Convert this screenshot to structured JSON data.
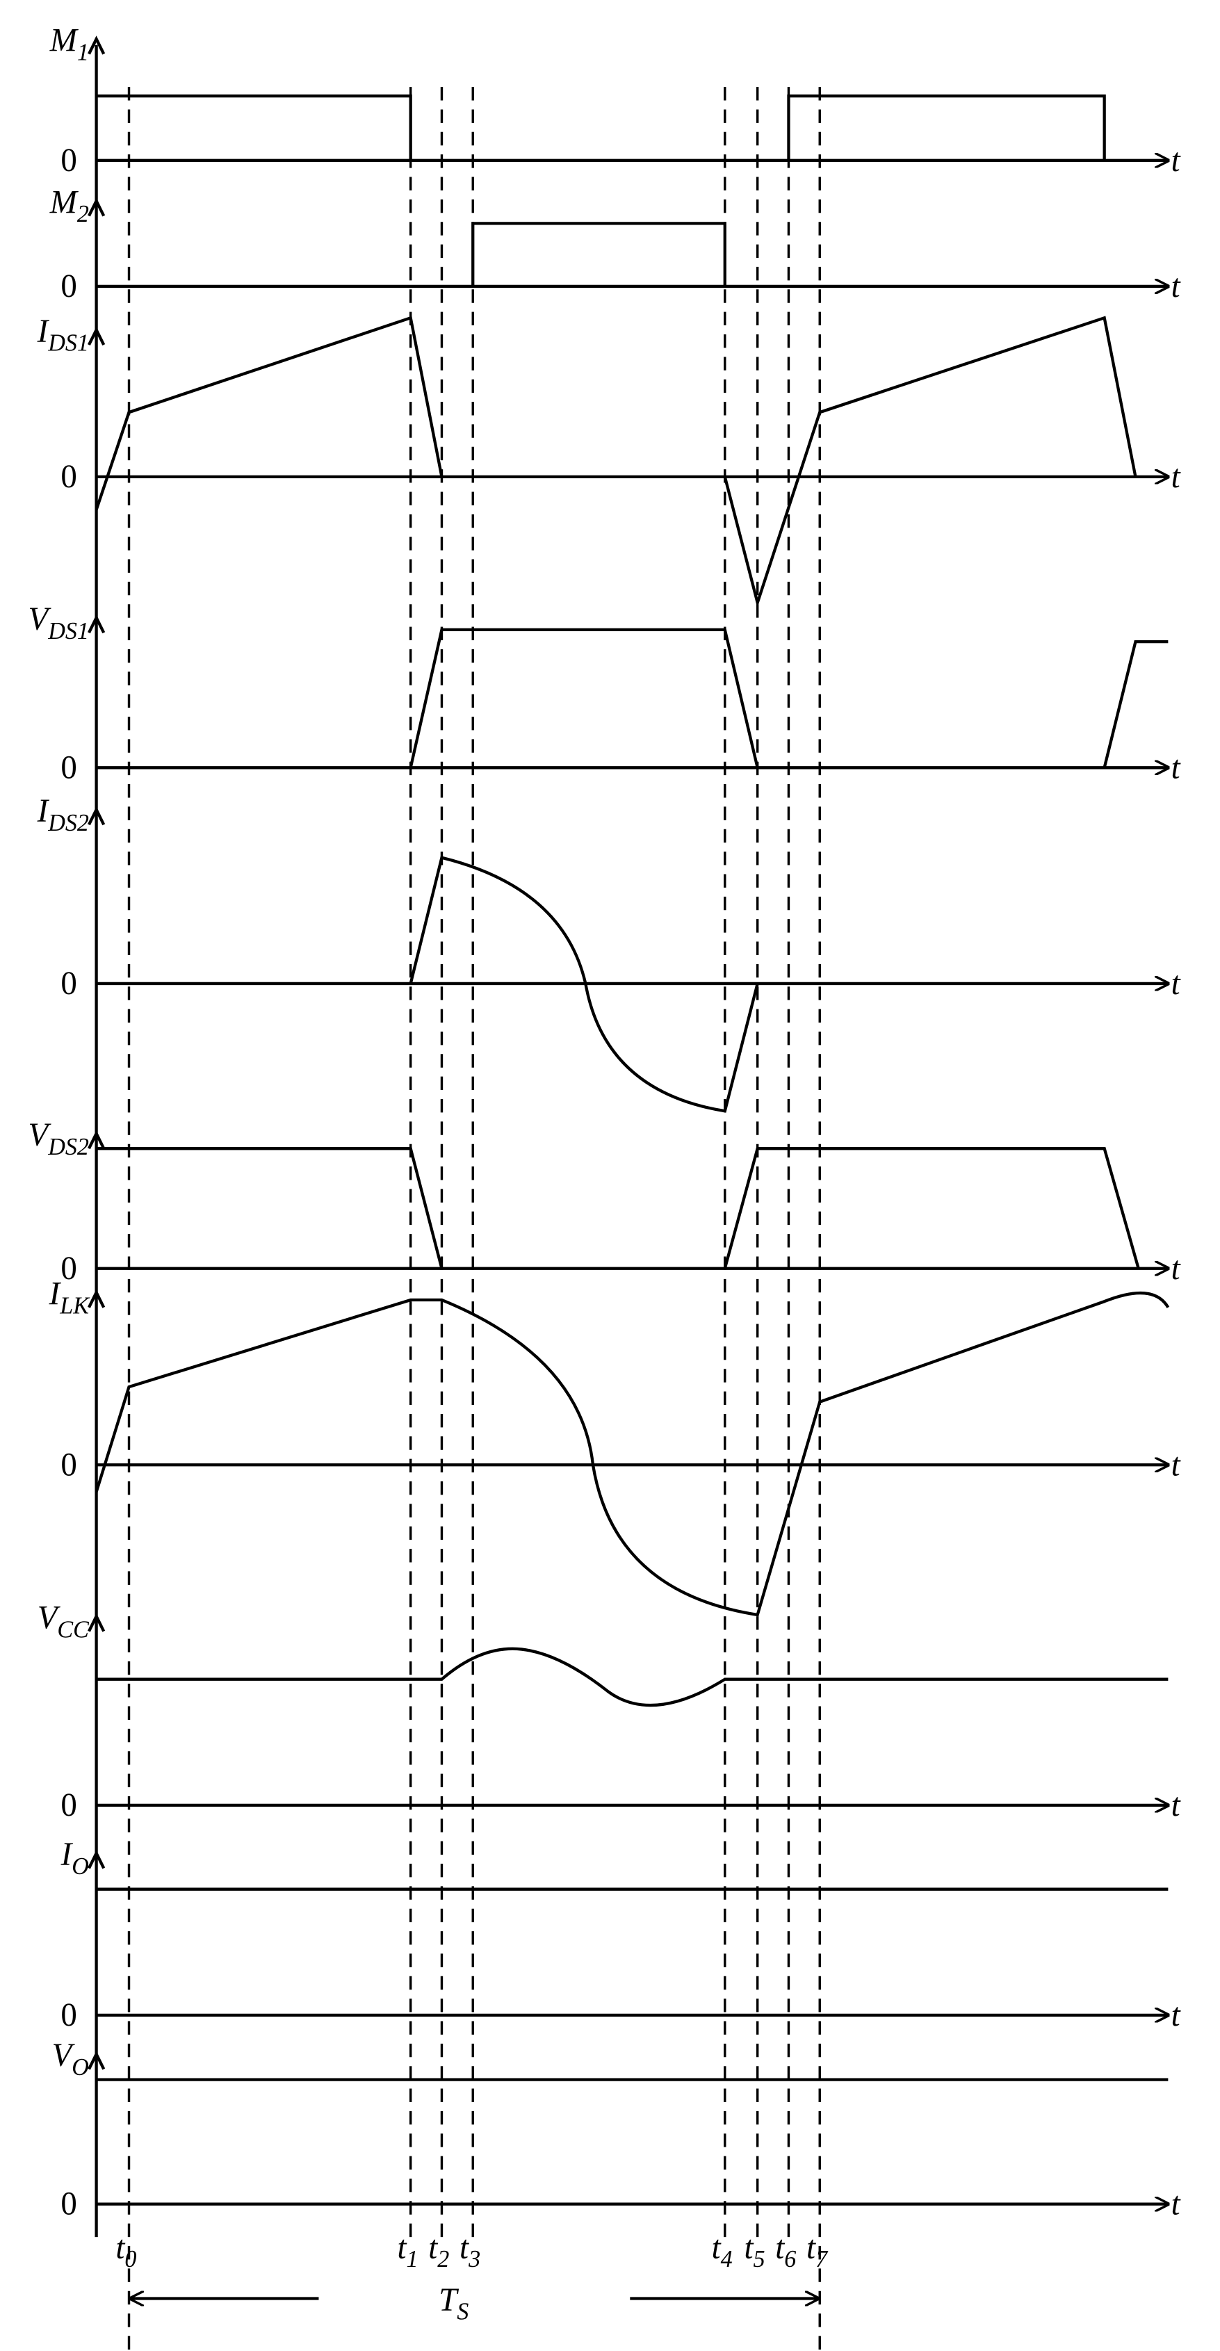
{
  "signals": [
    {
      "name": "M",
      "sub": "1",
      "zero": "0",
      "axis": "t"
    },
    {
      "name": "M",
      "sub": "2",
      "zero": "0",
      "axis": "t"
    },
    {
      "name": "I",
      "sub": "DS1",
      "zero": "0",
      "axis": "t"
    },
    {
      "name": "V",
      "sub": "DS1",
      "zero": "0",
      "axis": "t"
    },
    {
      "name": "I",
      "sub": "DS2",
      "zero": "0",
      "axis": "t"
    },
    {
      "name": "V",
      "sub": "DS2",
      "zero": "0",
      "axis": "t"
    },
    {
      "name": "I",
      "sub": "LK",
      "zero": "0",
      "axis": "t"
    },
    {
      "name": "V",
      "sub": "CC",
      "zero": "0",
      "axis": "t"
    },
    {
      "name": "I",
      "sub": "O",
      "zero": "0",
      "axis": "t"
    },
    {
      "name": "V",
      "sub": "O",
      "zero": "0",
      "axis": "t"
    }
  ],
  "time_marks": [
    {
      "name": "t",
      "sub": "0"
    },
    {
      "name": "t",
      "sub": "1"
    },
    {
      "name": "t",
      "sub": "2"
    },
    {
      "name": "t",
      "sub": "3"
    },
    {
      "name": "t",
      "sub": "4"
    },
    {
      "name": "t",
      "sub": "5"
    },
    {
      "name": "t",
      "sub": "6"
    },
    {
      "name": "t",
      "sub": "7"
    }
  ],
  "period": {
    "name": "T",
    "sub": "S"
  }
}
